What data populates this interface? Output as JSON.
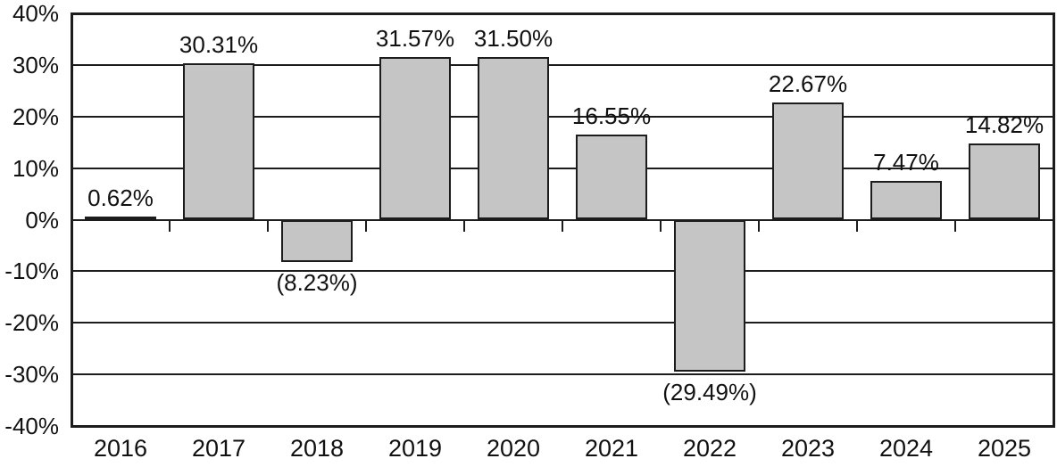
{
  "chart_data": {
    "type": "bar",
    "title": "",
    "xlabel": "",
    "ylabel": "",
    "categories": [
      "2016",
      "2017",
      "2018",
      "2019",
      "2020",
      "2021",
      "2022",
      "2023",
      "2024",
      "2025"
    ],
    "values": [
      0.62,
      30.31,
      -8.23,
      31.57,
      31.5,
      16.55,
      -29.49,
      22.67,
      7.47,
      14.82
    ],
    "value_labels": [
      "0.62%",
      "30.31%",
      "(8.23%)",
      "31.57%",
      "31.50%",
      "16.55%",
      "(29.49%)",
      "22.67%",
      "7.47%",
      "14.82%"
    ],
    "y_ticks": [
      40,
      30,
      20,
      10,
      0,
      -10,
      -20,
      -30,
      -40
    ],
    "y_tick_labels": [
      "40%",
      "30%",
      "20%",
      "10%",
      "0%",
      "-10%",
      "-20%",
      "-30%",
      "-40%"
    ],
    "ylim": [
      -40,
      40
    ],
    "grid": true,
    "legend": "none",
    "colors": {
      "bar_fill": "#c5c5c5",
      "line": "#1c1c1c",
      "text": "#111111",
      "background": "#ffffff"
    }
  }
}
